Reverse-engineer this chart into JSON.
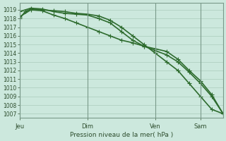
{
  "title": "",
  "xlabel": "Pression niveau de la mer( hPa )",
  "ylabel": "",
  "background_color": "#cce8dd",
  "grid_color": "#aaccbb",
  "line_color": "#2d6b2d",
  "ylim": [
    1006.5,
    1019.8
  ],
  "yticks": [
    1007,
    1008,
    1009,
    1010,
    1011,
    1012,
    1013,
    1014,
    1015,
    1016,
    1017,
    1018,
    1019
  ],
  "day_labels": [
    "Jeu",
    "Dim",
    "Ven",
    "Sam"
  ],
  "day_positions": [
    0,
    12,
    24,
    32
  ],
  "xlim": [
    0,
    36
  ],
  "series1_x": [
    0,
    1,
    2,
    4,
    6,
    8,
    10,
    12,
    14,
    16,
    18,
    20,
    22,
    24,
    26,
    28,
    30,
    32,
    34,
    36
  ],
  "series1_y": [
    1018.0,
    1018.8,
    1019.1,
    1019.0,
    1018.9,
    1018.8,
    1018.6,
    1018.5,
    1018.3,
    1017.8,
    1017.0,
    1016.0,
    1015.0,
    1014.0,
    1013.0,
    1012.0,
    1010.5,
    1009.0,
    1007.5,
    1007.0
  ],
  "series2_x": [
    0,
    2,
    4,
    6,
    8,
    10,
    12,
    14,
    16,
    18,
    20,
    22,
    24,
    26,
    28,
    30,
    32,
    34,
    36
  ],
  "series2_y": [
    1018.8,
    1019.2,
    1019.1,
    1018.8,
    1018.6,
    1018.5,
    1018.4,
    1018.0,
    1017.5,
    1016.5,
    1015.5,
    1014.8,
    1014.5,
    1014.2,
    1013.3,
    1012.0,
    1010.8,
    1009.2,
    1007.0
  ],
  "series3_x": [
    0,
    2,
    4,
    6,
    8,
    10,
    12,
    14,
    16,
    18,
    20,
    22,
    24,
    26,
    28,
    30,
    32,
    34,
    36
  ],
  "series3_y": [
    1018.2,
    1019.0,
    1018.9,
    1018.4,
    1018.0,
    1017.5,
    1017.0,
    1016.5,
    1016.0,
    1015.5,
    1015.2,
    1014.8,
    1014.3,
    1013.8,
    1013.0,
    1011.8,
    1010.5,
    1009.0,
    1007.0
  ],
  "marker": "+",
  "marker_size": 4,
  "line_width": 1.2
}
